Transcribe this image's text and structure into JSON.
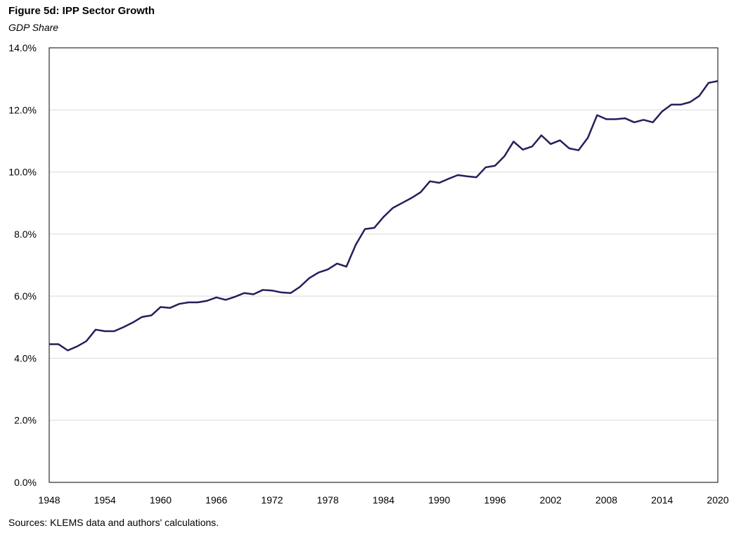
{
  "title": "Figure 5d: IPP Sector Growth",
  "subtitle": "GDP Share",
  "source": "Sources: KLEMS data and authors' calculations.",
  "colors": {
    "line": "#231F5C",
    "grid": "#D9D9D9",
    "frame": "#000000"
  },
  "chart_data": {
    "type": "line",
    "title": "Figure 5d: IPP Sector Growth",
    "subtitle": "GDP Share",
    "xlabel": "",
    "ylabel": "",
    "xlim": [
      1948,
      2020
    ],
    "ylim": [
      0,
      14
    ],
    "x_ticks": [
      1948,
      1954,
      1960,
      1966,
      1972,
      1978,
      1984,
      1990,
      1996,
      2002,
      2008,
      2014,
      2020
    ],
    "y_ticks": [
      0,
      2,
      4,
      6,
      8,
      10,
      12,
      14
    ],
    "y_tick_labels": [
      "0.0%",
      "2.0%",
      "4.0%",
      "6.0%",
      "8.0%",
      "10.0%",
      "12.0%",
      "14.0%"
    ],
    "grid": "horizontal",
    "legend": "none",
    "series": [
      {
        "x": [
          1948,
          1949,
          1950,
          1951,
          1952,
          1953,
          1954,
          1955,
          1956,
          1957,
          1958,
          1959,
          1960,
          1961,
          1962,
          1963,
          1964,
          1965,
          1966,
          1967,
          1968,
          1969,
          1970,
          1971,
          1972,
          1973,
          1974,
          1975,
          1976,
          1977,
          1978,
          1979,
          1980,
          1981,
          1982,
          1983,
          1984,
          1985,
          1986,
          1987,
          1988,
          1989,
          1990,
          1991,
          1992,
          1993,
          1994,
          1995,
          1996,
          1997,
          1998,
          1999,
          2000,
          2001,
          2002,
          2003,
          2004,
          2005,
          2006,
          2007,
          2008,
          2009,
          2010,
          2011,
          2012,
          2013,
          2014,
          2015,
          2016,
          2017,
          2018,
          2019,
          2020
        ],
        "values": [
          4.45,
          4.45,
          4.25,
          4.38,
          4.55,
          4.92,
          4.87,
          4.87,
          5.0,
          5.15,
          5.33,
          5.38,
          5.65,
          5.62,
          5.75,
          5.8,
          5.8,
          5.85,
          5.96,
          5.88,
          5.98,
          6.1,
          6.06,
          6.2,
          6.18,
          6.12,
          6.1,
          6.3,
          6.58,
          6.76,
          6.86,
          7.05,
          6.95,
          7.65,
          8.16,
          8.2,
          8.55,
          8.84,
          9.0,
          9.16,
          9.35,
          9.7,
          9.65,
          9.78,
          9.9,
          9.86,
          9.83,
          10.15,
          10.2,
          10.5,
          10.98,
          10.72,
          10.82,
          11.18,
          10.9,
          11.02,
          10.76,
          10.7,
          11.1,
          11.83,
          11.7,
          11.7,
          11.73,
          11.6,
          11.68,
          11.6,
          11.95,
          12.17,
          12.17,
          12.25,
          12.45,
          12.87,
          12.93
        ]
      }
    ]
  }
}
